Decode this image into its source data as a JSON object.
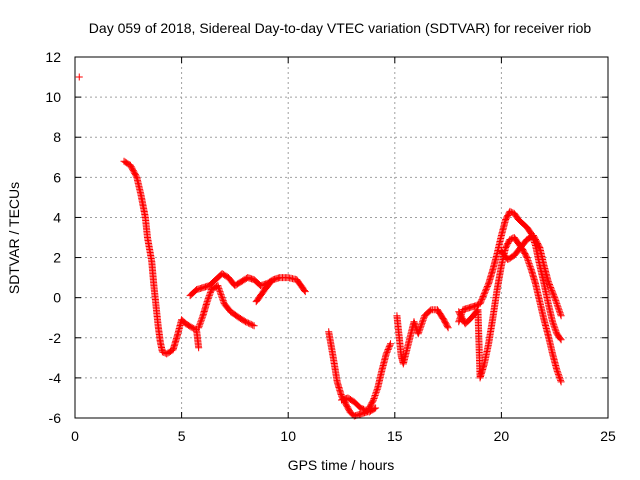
{
  "chart_data": {
    "type": "scatter",
    "title": "Day 059 of 2018, Sidereal Day-to-day VTEC variation (SDTVAR) for receiver riob",
    "xlabel": "GPS time / hours",
    "ylabel": "SDTVAR / TECUs",
    "xlim": [
      0,
      25
    ],
    "ylim": [
      -6,
      12
    ],
    "x_ticks": [
      0,
      5,
      10,
      15,
      20,
      25
    ],
    "x_tick_labels": [
      "0",
      "5",
      "10",
      "15",
      "20",
      "25"
    ],
    "y_ticks": [
      -6,
      -4,
      -2,
      0,
      2,
      4,
      6,
      8,
      10,
      12
    ],
    "y_tick_labels": [
      "-6",
      "-4",
      "-2",
      "0",
      "2",
      "4",
      "6",
      "8",
      "10",
      "12"
    ],
    "grid": true,
    "legend": "none",
    "marker": "+",
    "colors": {
      "marker": "#ff0000",
      "grid": "#a0a0a0",
      "axis": "#000000"
    },
    "series": [
      {
        "name": "SDTVAR",
        "points": [
          [
            0.2,
            11.0
          ]
        ]
      },
      {
        "name": "SDTVAR",
        "points": [
          [
            2.3,
            6.8
          ],
          [
            2.6,
            6.6
          ],
          [
            2.9,
            6.0
          ],
          [
            3.1,
            5.1
          ],
          [
            3.3,
            4.0
          ],
          [
            3.4,
            3.0
          ],
          [
            3.6,
            1.8
          ],
          [
            3.7,
            0.6
          ],
          [
            3.8,
            -0.4
          ],
          [
            3.9,
            -1.4
          ],
          [
            4.0,
            -2.2
          ],
          [
            4.1,
            -2.7
          ],
          [
            4.3,
            -2.8
          ],
          [
            4.6,
            -2.6
          ],
          [
            4.8,
            -1.9
          ],
          [
            5.0,
            -1.1
          ],
          [
            5.2,
            -1.3
          ],
          [
            5.5,
            -1.5
          ],
          [
            5.7,
            -1.6
          ],
          [
            5.8,
            -2.5
          ]
        ]
      },
      {
        "name": "SDTVAR",
        "points": [
          [
            5.4,
            0.1
          ],
          [
            5.7,
            0.4
          ],
          [
            6.0,
            0.5
          ],
          [
            6.3,
            0.6
          ],
          [
            6.6,
            0.9
          ],
          [
            6.9,
            1.2
          ],
          [
            7.2,
            1.0
          ],
          [
            7.5,
            0.6
          ],
          [
            7.8,
            0.8
          ],
          [
            8.1,
            1.0
          ],
          [
            8.4,
            0.9
          ],
          [
            8.7,
            0.6
          ],
          [
            9.0,
            0.7
          ],
          [
            9.3,
            0.9
          ],
          [
            9.6,
            1.0
          ],
          [
            10.0,
            1.0
          ],
          [
            10.4,
            0.9
          ],
          [
            10.8,
            0.3
          ]
        ]
      },
      {
        "name": "SDTVAR",
        "points": [
          [
            5.8,
            -1.5
          ],
          [
            6.0,
            -0.9
          ],
          [
            6.2,
            -0.2
          ],
          [
            6.4,
            0.4
          ],
          [
            6.7,
            0.6
          ],
          [
            7.0,
            -0.3
          ],
          [
            7.3,
            -0.7
          ],
          [
            7.7,
            -1.0
          ],
          [
            8.0,
            -1.2
          ],
          [
            8.4,
            -1.4
          ]
        ]
      },
      {
        "name": "SDTVAR",
        "points": [
          [
            8.5,
            -0.2
          ],
          [
            8.9,
            0.4
          ],
          [
            9.2,
            0.8
          ]
        ]
      },
      {
        "name": "SDTVAR",
        "points": [
          [
            11.9,
            -1.7
          ],
          [
            12.1,
            -2.9
          ],
          [
            12.3,
            -4.2
          ],
          [
            12.5,
            -4.9
          ],
          [
            12.7,
            -5.3
          ],
          [
            12.9,
            -5.7
          ],
          [
            13.1,
            -5.9
          ],
          [
            13.4,
            -5.8
          ],
          [
            13.7,
            -5.7
          ],
          [
            14.0,
            -5.1
          ],
          [
            14.2,
            -4.5
          ],
          [
            14.4,
            -3.6
          ],
          [
            14.6,
            -2.8
          ],
          [
            14.8,
            -2.3
          ]
        ]
      },
      {
        "name": "SDTVAR",
        "points": [
          [
            12.5,
            -5.1
          ],
          [
            12.8,
            -5.0
          ],
          [
            13.1,
            -5.2
          ],
          [
            13.4,
            -5.5
          ],
          [
            13.8,
            -5.7
          ],
          [
            14.1,
            -5.5
          ]
        ]
      },
      {
        "name": "SDTVAR",
        "points": [
          [
            15.1,
            -0.9
          ],
          [
            15.3,
            -2.9
          ],
          [
            15.4,
            -3.3
          ],
          [
            15.9,
            -1.2
          ],
          [
            16.1,
            -1.8
          ],
          [
            16.4,
            -0.9
          ],
          [
            16.7,
            -0.6
          ],
          [
            17.0,
            -0.6
          ],
          [
            17.3,
            -1.1
          ],
          [
            17.5,
            -1.5
          ]
        ]
      },
      {
        "name": "SDTVAR",
        "points": [
          [
            18.0,
            -1.2
          ],
          [
            18.2,
            -0.6
          ],
          [
            18.5,
            -0.5
          ],
          [
            18.8,
            -0.4
          ],
          [
            19.0,
            -0.3
          ],
          [
            19.2,
            0.2
          ],
          [
            19.4,
            0.7
          ],
          [
            19.6,
            1.4
          ],
          [
            19.8,
            2.2
          ],
          [
            20.0,
            3.1
          ],
          [
            20.2,
            3.9
          ],
          [
            20.4,
            4.3
          ],
          [
            20.6,
            4.2
          ],
          [
            20.8,
            3.9
          ],
          [
            21.0,
            3.7
          ],
          [
            21.2,
            3.5
          ],
          [
            21.4,
            3.2
          ],
          [
            21.6,
            2.6
          ],
          [
            21.8,
            1.6
          ],
          [
            22.0,
            0.7
          ],
          [
            22.2,
            -0.3
          ],
          [
            22.4,
            -1.2
          ],
          [
            22.6,
            -1.8
          ],
          [
            22.8,
            -2.1
          ]
        ]
      },
      {
        "name": "SDTVAR",
        "points": [
          [
            18.0,
            -0.7
          ],
          [
            18.3,
            -1.3
          ],
          [
            18.6,
            -1.0
          ],
          [
            18.9,
            -0.6
          ],
          [
            19.0,
            -4.0
          ],
          [
            19.2,
            -3.3
          ],
          [
            19.4,
            -2.3
          ],
          [
            19.6,
            -1.0
          ],
          [
            19.8,
            0.4
          ],
          [
            20.0,
            1.6
          ],
          [
            20.2,
            2.5
          ],
          [
            20.4,
            2.9
          ],
          [
            20.6,
            3.0
          ],
          [
            20.8,
            2.7
          ],
          [
            21.0,
            2.4
          ],
          [
            21.2,
            2.0
          ],
          [
            21.4,
            1.4
          ],
          [
            21.6,
            0.7
          ],
          [
            21.8,
            -0.2
          ],
          [
            22.0,
            -1.1
          ],
          [
            22.2,
            -1.9
          ],
          [
            22.4,
            -2.8
          ],
          [
            22.6,
            -3.6
          ],
          [
            22.8,
            -4.2
          ]
        ]
      },
      {
        "name": "SDTVAR",
        "points": [
          [
            20.0,
            2.3
          ],
          [
            20.3,
            1.9
          ],
          [
            20.6,
            2.1
          ],
          [
            20.9,
            2.5
          ],
          [
            21.2,
            2.9
          ],
          [
            21.5,
            3.1
          ],
          [
            21.8,
            2.5
          ],
          [
            22.0,
            1.6
          ],
          [
            22.2,
            0.8
          ],
          [
            22.5,
            0.0
          ],
          [
            22.8,
            -0.9
          ]
        ]
      }
    ]
  }
}
